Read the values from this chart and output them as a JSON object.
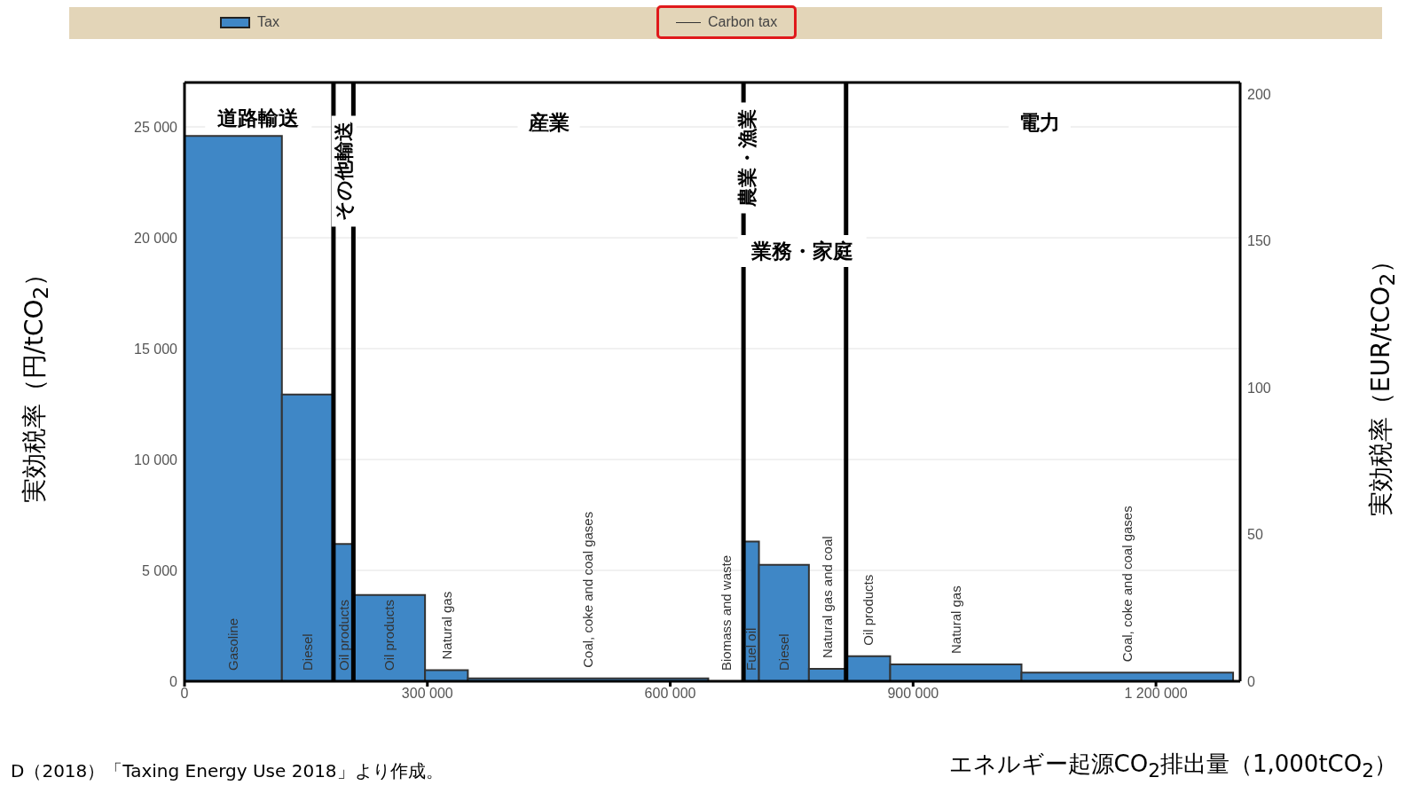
{
  "chart_data": {
    "type": "histogram",
    "xlabel": "エネルギー起源CO$_{2}$排出量（1,000tCO$_{2}$）",
    "ylabel": "実効税率（円/tCO$_{2}$）",
    "y2label": "実効税率（EUR/tCO$_{2}$）",
    "bins": [
      0,
      120300,
      184000,
      208600,
      297100,
      350000,
      647000,
      690500,
      709600,
      771300,
      817200,
      871700,
      1033900,
      1295300
    ],
    "series": [
      {
        "name": "Tax",
        "color": "#3f87c6",
        "values": [
          24590,
          12930,
          6190,
          3890,
          500,
          130,
          0,
          6300,
          5250,
          560,
          1130,
          760,
          390
        ]
      },
      {
        "name": "Carbon tax",
        "type": "step",
        "color": "#333333",
        "values": [
          null,
          null,
          null,
          null,
          null,
          null,
          null,
          null,
          null,
          null,
          null,
          null,
          null
        ]
      }
    ],
    "xlim": [
      0,
      1304000
    ],
    "xticks": [
      0,
      {
        "value": 300000,
        "label": "300 000"
      },
      {
        "value": 600000,
        "label": "600 000"
      },
      {
        "value": 900000,
        "label": "900 000"
      },
      {
        "value": 1200000,
        "label": "1 200 000"
      }
    ],
    "ylim": [
      0,
      27000
    ],
    "yticks": [
      0,
      {
        "value": 5000,
        "label": "5 000"
      },
      {
        "value": 10000,
        "label": "10 000"
      },
      {
        "value": 15000,
        "label": "15 000"
      },
      {
        "value": 20000,
        "label": "20 000"
      },
      {
        "value": 25000,
        "label": "25 000"
      }
    ],
    "y2lim": [
      0,
      204
    ],
    "y2ticks": [
      0,
      50,
      100,
      150,
      200
    ],
    "grid": "y",
    "legend": "top",
    "ref_lines": [
      {
        "axis": "x",
        "value": 184000,
        "color": "#000000"
      },
      {
        "axis": "x",
        "value": 208600,
        "color": "#000000"
      },
      {
        "axis": "x",
        "value": 690500,
        "color": "#000000"
      },
      {
        "axis": "x",
        "value": 817200,
        "color": "#000000"
      }
    ],
    "annotations": [
      "道路輸送",
      "その他輸送",
      "産業",
      "農業・漁業",
      "業務・家庭",
      "電力",
      "D（2018）「Taxing Energy Use 2018」より作成。"
    ],
    "categories": [
      "Gasoline",
      "Diesel",
      "Oil products",
      "Oil products",
      "Natural gas",
      "Coal, coke and coal gases",
      "Biomass and waste",
      "Fuel oil",
      "Diesel",
      "Natural gas and coal",
      "Oil products",
      "Natural gas",
      "Coal, coke and coal gases"
    ]
  }
}
